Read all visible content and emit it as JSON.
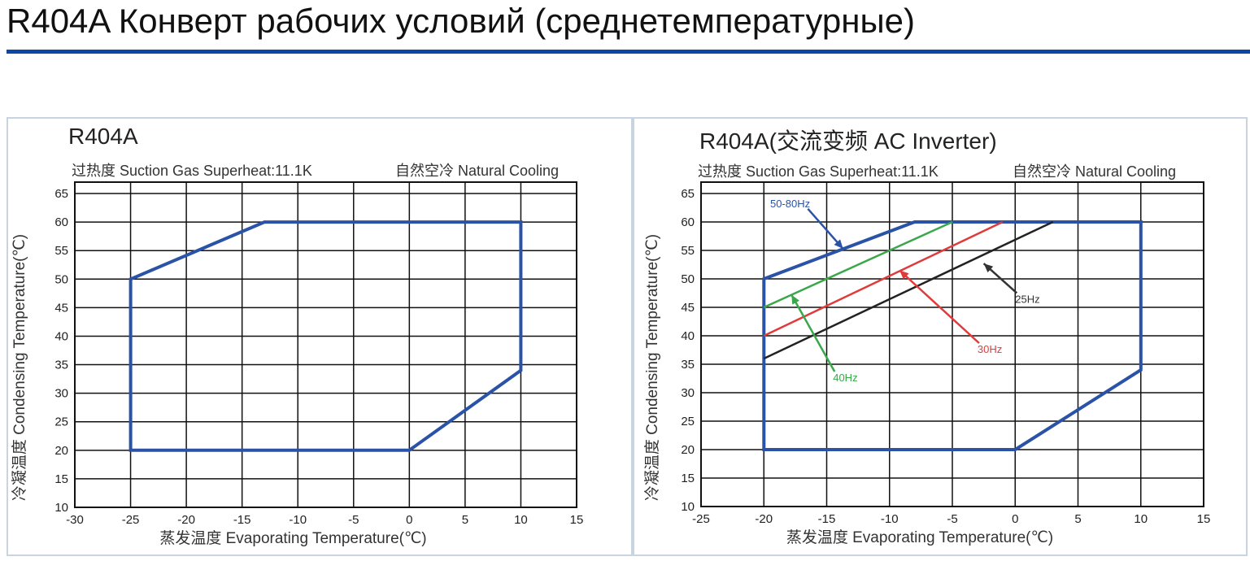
{
  "page": {
    "title": "R404A Конверт рабочих условий (среднетемпературные)",
    "accent_color": "#0d47a8"
  },
  "chart_data": [
    {
      "type": "line",
      "title": "R404A",
      "subtitle_left": "过热度  Suction Gas Superheat:11.1K",
      "subtitle_right": "自然空冷  Natural Cooling",
      "xlabel": "蒸发温度 Evaporating Temperature(℃)",
      "ylabel": "冷凝温度 Condensing Temperature(℃)",
      "xlim": [
        -30,
        15
      ],
      "ylim": [
        10,
        67
      ],
      "xticks": [
        -30,
        -25,
        -20,
        -15,
        -10,
        -5,
        0,
        5,
        10,
        15
      ],
      "yticks": [
        10,
        15,
        20,
        25,
        30,
        35,
        40,
        45,
        50,
        55,
        60,
        65
      ],
      "grid": true,
      "series": [
        {
          "color": "#2a53a8",
          "closed": true,
          "x": [
            -25,
            -13,
            10,
            10,
            0,
            -25
          ],
          "y": [
            50,
            60,
            60,
            34,
            20,
            20
          ]
        }
      ],
      "annotations": []
    },
    {
      "type": "line",
      "title": "R404A(交流变频 AC Inverter)",
      "subtitle_left": "过热度  Suction Gas Superheat:11.1K",
      "subtitle_right": "自然空冷  Natural Cooling",
      "xlabel": "蒸发温度 Evaporating Temperature(℃)",
      "ylabel": "冷凝温度 Condensing Temperature(℃)",
      "xlim": [
        -25,
        15
      ],
      "ylim": [
        10,
        67
      ],
      "xticks": [
        -25,
        -20,
        -15,
        -10,
        -5,
        0,
        5,
        10,
        15
      ],
      "yticks": [
        10,
        15,
        20,
        25,
        30,
        35,
        40,
        45,
        50,
        55,
        60,
        65
      ],
      "grid": true,
      "series": [
        {
          "color": "#2a53a8",
          "closed": true,
          "x": [
            -20,
            -8,
            10,
            10,
            0,
            -20
          ],
          "y": [
            50,
            60,
            60,
            34,
            20,
            20
          ]
        },
        {
          "color": "#3aa84a",
          "closed": false,
          "x": [
            -20,
            -5
          ],
          "y": [
            45,
            60
          ]
        },
        {
          "color": "#e03b3b",
          "closed": false,
          "x": [
            -20,
            -1
          ],
          "y": [
            40,
            60
          ]
        },
        {
          "color": "#222222",
          "closed": false,
          "x": [
            -20,
            3
          ],
          "y": [
            36,
            60
          ]
        }
      ],
      "annotations": [
        {
          "text": "50-80Hz",
          "color": "#2a53a8",
          "tx": -19.5,
          "ty": 62.6,
          "ax": -13.7,
          "ay": 55.3
        },
        {
          "text": "40Hz",
          "color": "#3aa84a",
          "tx": -14.5,
          "ty": 32.0,
          "ax": -17.8,
          "ay": 47.2
        },
        {
          "text": "30Hz",
          "color": "#e03b3b",
          "tx": -3.0,
          "ty": 37.0,
          "ax": -9.2,
          "ay": 51.5
        },
        {
          "text": "25Hz",
          "color": "#333333",
          "tx": 0.0,
          "ty": 45.8,
          "ax": -2.5,
          "ay": 52.7
        }
      ]
    }
  ]
}
